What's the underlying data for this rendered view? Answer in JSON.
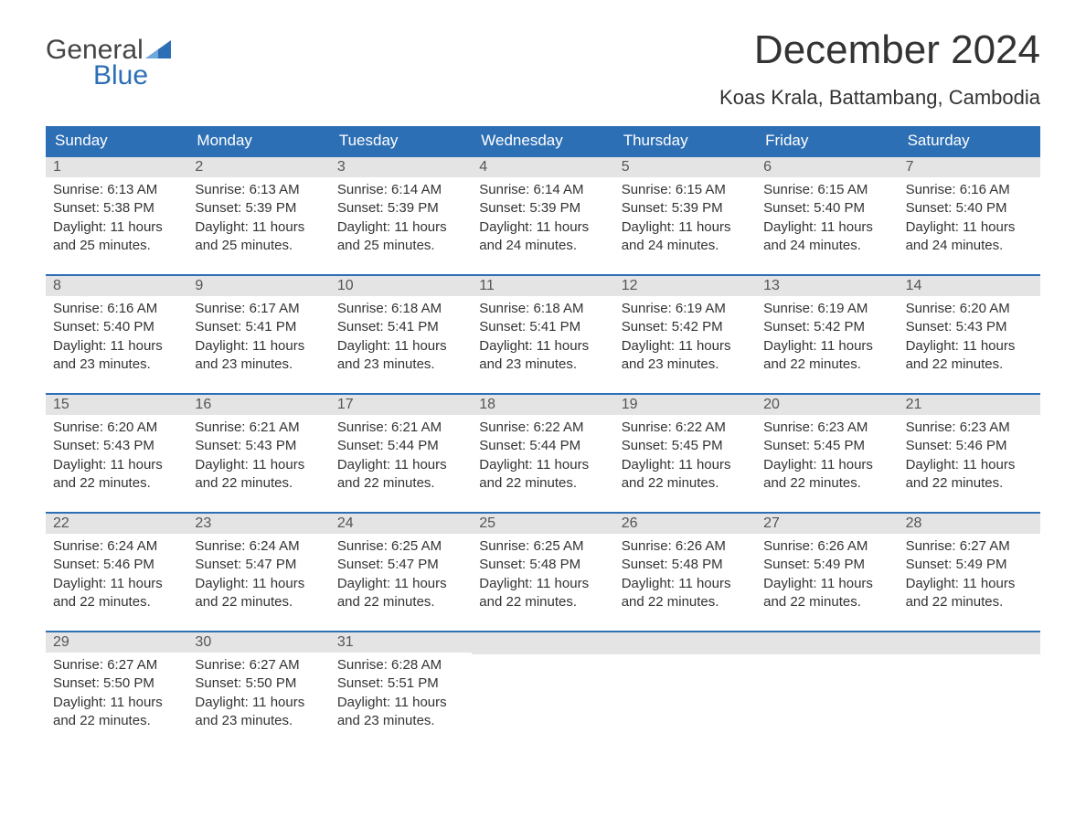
{
  "logo": {
    "top": "General",
    "bottom": "Blue"
  },
  "header": {
    "month_title": "December 2024",
    "location": "Koas Krala, Battambang, Cambodia"
  },
  "colors": {
    "header_bg": "#2d6fb5",
    "header_text": "#ffffff",
    "daynum_bg": "#e4e4e4",
    "week_border": "#2d6fb5",
    "logo_blue": "#2d6fb5",
    "logo_gray": "#444444",
    "body_text": "#333333",
    "background": "#ffffff"
  },
  "layout": {
    "columns": 7,
    "rows": 5,
    "first_day_column": 0
  },
  "weekdays": [
    "Sunday",
    "Monday",
    "Tuesday",
    "Wednesday",
    "Thursday",
    "Friday",
    "Saturday"
  ],
  "days": [
    {
      "n": 1,
      "sunrise": "Sunrise: 6:13 AM",
      "sunset": "Sunset: 5:38 PM",
      "daylight1": "Daylight: 11 hours",
      "daylight2": "and 25 minutes."
    },
    {
      "n": 2,
      "sunrise": "Sunrise: 6:13 AM",
      "sunset": "Sunset: 5:39 PM",
      "daylight1": "Daylight: 11 hours",
      "daylight2": "and 25 minutes."
    },
    {
      "n": 3,
      "sunrise": "Sunrise: 6:14 AM",
      "sunset": "Sunset: 5:39 PM",
      "daylight1": "Daylight: 11 hours",
      "daylight2": "and 25 minutes."
    },
    {
      "n": 4,
      "sunrise": "Sunrise: 6:14 AM",
      "sunset": "Sunset: 5:39 PM",
      "daylight1": "Daylight: 11 hours",
      "daylight2": "and 24 minutes."
    },
    {
      "n": 5,
      "sunrise": "Sunrise: 6:15 AM",
      "sunset": "Sunset: 5:39 PM",
      "daylight1": "Daylight: 11 hours",
      "daylight2": "and 24 minutes."
    },
    {
      "n": 6,
      "sunrise": "Sunrise: 6:15 AM",
      "sunset": "Sunset: 5:40 PM",
      "daylight1": "Daylight: 11 hours",
      "daylight2": "and 24 minutes."
    },
    {
      "n": 7,
      "sunrise": "Sunrise: 6:16 AM",
      "sunset": "Sunset: 5:40 PM",
      "daylight1": "Daylight: 11 hours",
      "daylight2": "and 24 minutes."
    },
    {
      "n": 8,
      "sunrise": "Sunrise: 6:16 AM",
      "sunset": "Sunset: 5:40 PM",
      "daylight1": "Daylight: 11 hours",
      "daylight2": "and 23 minutes."
    },
    {
      "n": 9,
      "sunrise": "Sunrise: 6:17 AM",
      "sunset": "Sunset: 5:41 PM",
      "daylight1": "Daylight: 11 hours",
      "daylight2": "and 23 minutes."
    },
    {
      "n": 10,
      "sunrise": "Sunrise: 6:18 AM",
      "sunset": "Sunset: 5:41 PM",
      "daylight1": "Daylight: 11 hours",
      "daylight2": "and 23 minutes."
    },
    {
      "n": 11,
      "sunrise": "Sunrise: 6:18 AM",
      "sunset": "Sunset: 5:41 PM",
      "daylight1": "Daylight: 11 hours",
      "daylight2": "and 23 minutes."
    },
    {
      "n": 12,
      "sunrise": "Sunrise: 6:19 AM",
      "sunset": "Sunset: 5:42 PM",
      "daylight1": "Daylight: 11 hours",
      "daylight2": "and 23 minutes."
    },
    {
      "n": 13,
      "sunrise": "Sunrise: 6:19 AM",
      "sunset": "Sunset: 5:42 PM",
      "daylight1": "Daylight: 11 hours",
      "daylight2": "and 22 minutes."
    },
    {
      "n": 14,
      "sunrise": "Sunrise: 6:20 AM",
      "sunset": "Sunset: 5:43 PM",
      "daylight1": "Daylight: 11 hours",
      "daylight2": "and 22 minutes."
    },
    {
      "n": 15,
      "sunrise": "Sunrise: 6:20 AM",
      "sunset": "Sunset: 5:43 PM",
      "daylight1": "Daylight: 11 hours",
      "daylight2": "and 22 minutes."
    },
    {
      "n": 16,
      "sunrise": "Sunrise: 6:21 AM",
      "sunset": "Sunset: 5:43 PM",
      "daylight1": "Daylight: 11 hours",
      "daylight2": "and 22 minutes."
    },
    {
      "n": 17,
      "sunrise": "Sunrise: 6:21 AM",
      "sunset": "Sunset: 5:44 PM",
      "daylight1": "Daylight: 11 hours",
      "daylight2": "and 22 minutes."
    },
    {
      "n": 18,
      "sunrise": "Sunrise: 6:22 AM",
      "sunset": "Sunset: 5:44 PM",
      "daylight1": "Daylight: 11 hours",
      "daylight2": "and 22 minutes."
    },
    {
      "n": 19,
      "sunrise": "Sunrise: 6:22 AM",
      "sunset": "Sunset: 5:45 PM",
      "daylight1": "Daylight: 11 hours",
      "daylight2": "and 22 minutes."
    },
    {
      "n": 20,
      "sunrise": "Sunrise: 6:23 AM",
      "sunset": "Sunset: 5:45 PM",
      "daylight1": "Daylight: 11 hours",
      "daylight2": "and 22 minutes."
    },
    {
      "n": 21,
      "sunrise": "Sunrise: 6:23 AM",
      "sunset": "Sunset: 5:46 PM",
      "daylight1": "Daylight: 11 hours",
      "daylight2": "and 22 minutes."
    },
    {
      "n": 22,
      "sunrise": "Sunrise: 6:24 AM",
      "sunset": "Sunset: 5:46 PM",
      "daylight1": "Daylight: 11 hours",
      "daylight2": "and 22 minutes."
    },
    {
      "n": 23,
      "sunrise": "Sunrise: 6:24 AM",
      "sunset": "Sunset: 5:47 PM",
      "daylight1": "Daylight: 11 hours",
      "daylight2": "and 22 minutes."
    },
    {
      "n": 24,
      "sunrise": "Sunrise: 6:25 AM",
      "sunset": "Sunset: 5:47 PM",
      "daylight1": "Daylight: 11 hours",
      "daylight2": "and 22 minutes."
    },
    {
      "n": 25,
      "sunrise": "Sunrise: 6:25 AM",
      "sunset": "Sunset: 5:48 PM",
      "daylight1": "Daylight: 11 hours",
      "daylight2": "and 22 minutes."
    },
    {
      "n": 26,
      "sunrise": "Sunrise: 6:26 AM",
      "sunset": "Sunset: 5:48 PM",
      "daylight1": "Daylight: 11 hours",
      "daylight2": "and 22 minutes."
    },
    {
      "n": 27,
      "sunrise": "Sunrise: 6:26 AM",
      "sunset": "Sunset: 5:49 PM",
      "daylight1": "Daylight: 11 hours",
      "daylight2": "and 22 minutes."
    },
    {
      "n": 28,
      "sunrise": "Sunrise: 6:27 AM",
      "sunset": "Sunset: 5:49 PM",
      "daylight1": "Daylight: 11 hours",
      "daylight2": "and 22 minutes."
    },
    {
      "n": 29,
      "sunrise": "Sunrise: 6:27 AM",
      "sunset": "Sunset: 5:50 PM",
      "daylight1": "Daylight: 11 hours",
      "daylight2": "and 22 minutes."
    },
    {
      "n": 30,
      "sunrise": "Sunrise: 6:27 AM",
      "sunset": "Sunset: 5:50 PM",
      "daylight1": "Daylight: 11 hours",
      "daylight2": "and 23 minutes."
    },
    {
      "n": 31,
      "sunrise": "Sunrise: 6:28 AM",
      "sunset": "Sunset: 5:51 PM",
      "daylight1": "Daylight: 11 hours",
      "daylight2": "and 23 minutes."
    }
  ]
}
